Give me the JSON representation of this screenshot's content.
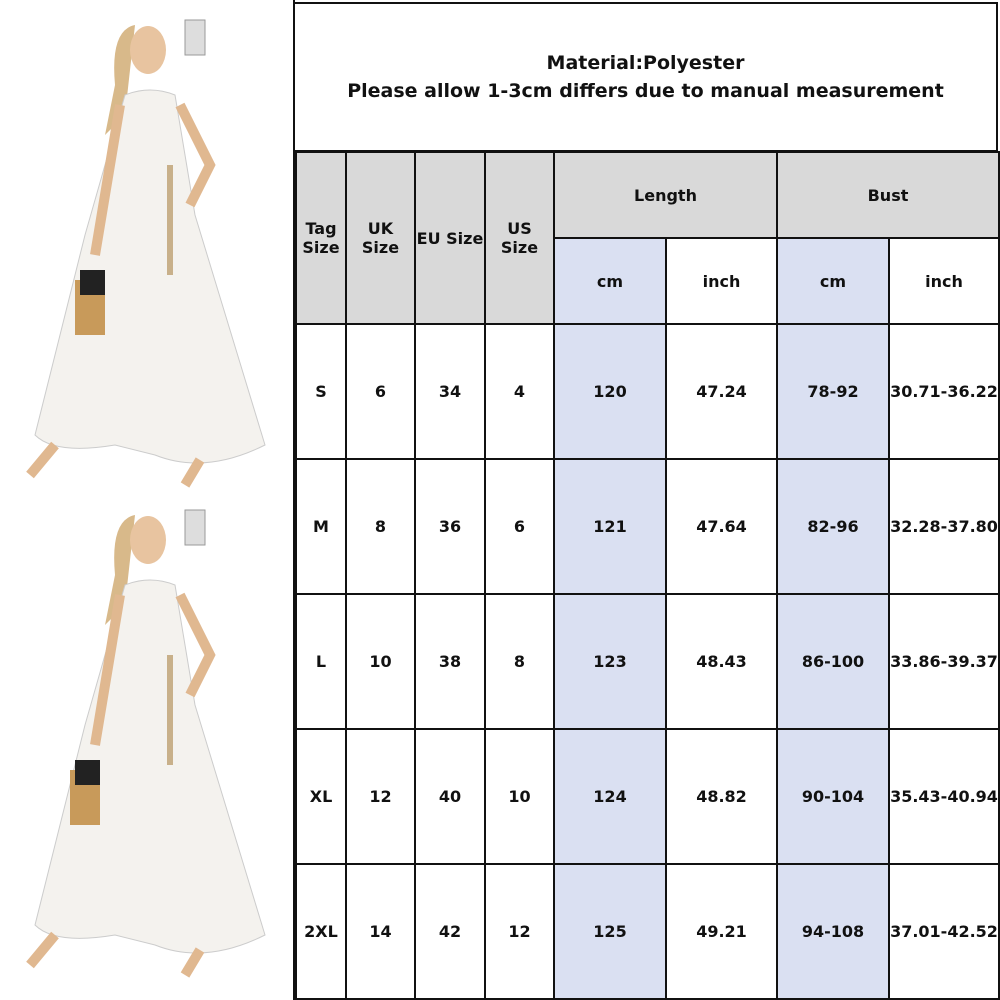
{
  "title": {
    "line1": "Material:Polyester",
    "line2": "Please allow 1-3cm differs due to manual measurement"
  },
  "colors": {
    "header_gray": "#d9d9d9",
    "cm_blue": "#dae0f2",
    "border": "#111111"
  },
  "headers": {
    "tag": "Tag Size",
    "uk": "UK Size",
    "eu": "EU Size",
    "us": "US Size",
    "length": "Length",
    "bust": "Bust",
    "cm": "cm",
    "inch": "inch"
  },
  "rows": [
    {
      "tag": "S",
      "uk": "6",
      "eu": "34",
      "us": "4",
      "length_cm": "120",
      "length_inch": "47.24",
      "bust_cm": "78-92",
      "bust_inch": "30.71-36.22"
    },
    {
      "tag": "M",
      "uk": "8",
      "eu": "36",
      "us": "6",
      "length_cm": "121",
      "length_inch": "47.64",
      "bust_cm": "82-96",
      "bust_inch": "32.28-37.80"
    },
    {
      "tag": "L",
      "uk": "10",
      "eu": "38",
      "us": "8",
      "length_cm": "123",
      "length_inch": "48.43",
      "bust_cm": "86-100",
      "bust_inch": "33.86-39.37"
    },
    {
      "tag": "XL",
      "uk": "12",
      "eu": "40",
      "us": "10",
      "length_cm": "124",
      "length_inch": "48.82",
      "bust_cm": "90-104",
      "bust_inch": "35.43-40.94"
    },
    {
      "tag": "2XL",
      "uk": "14",
      "eu": "42",
      "us": "12",
      "length_cm": "125",
      "length_inch": "49.21",
      "bust_cm": "94-108",
      "bust_inch": "37.01-42.52"
    }
  ]
}
